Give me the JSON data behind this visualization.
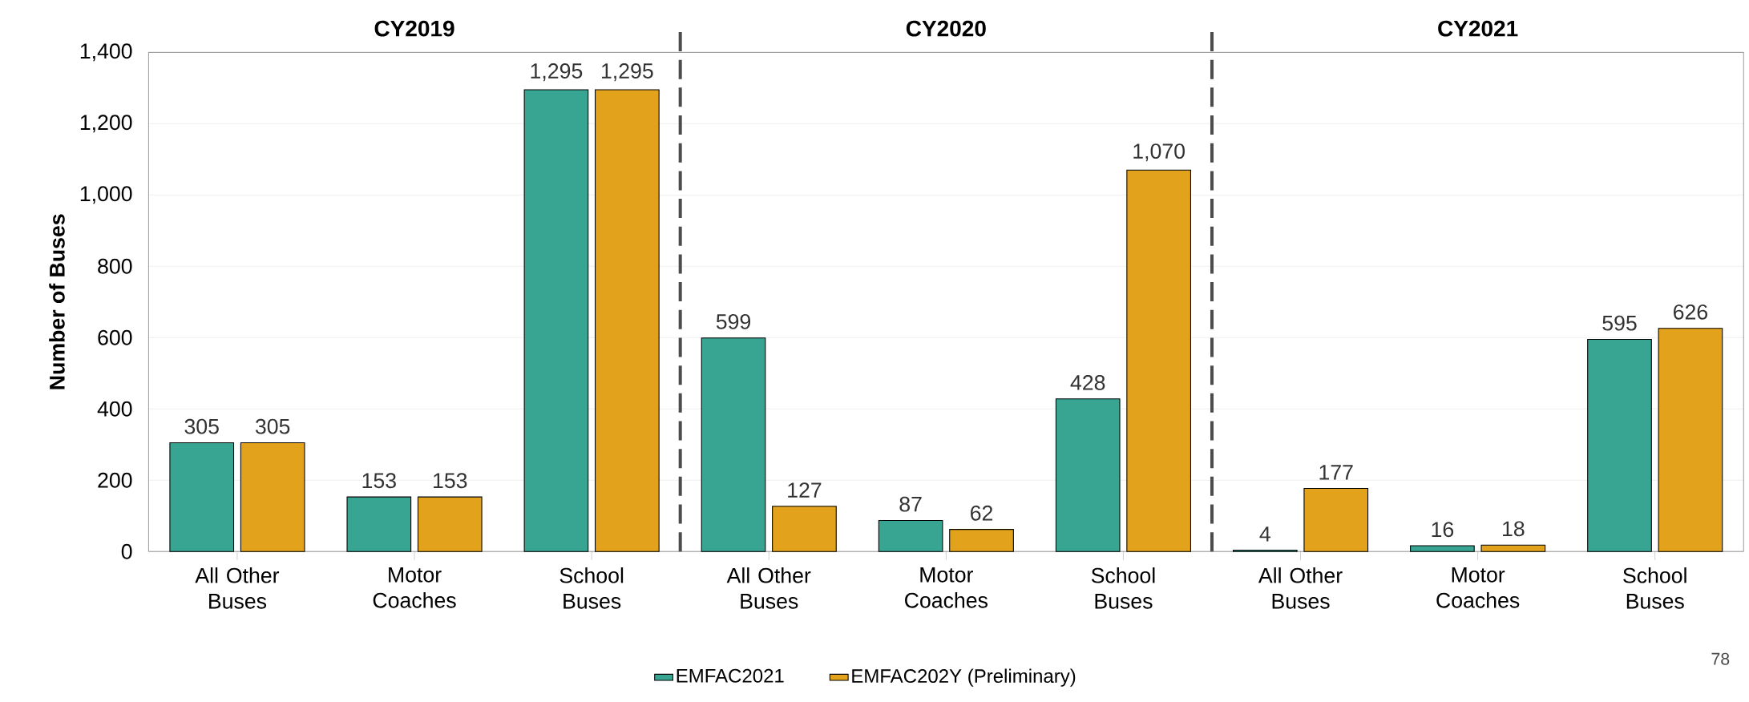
{
  "chart_data": {
    "type": "bar",
    "ylabel": "Number of Buses",
    "categories": [
      "All Other Buses",
      "Motor Coaches",
      "School Buses",
      "All Other Buses",
      "Motor Coaches",
      "School Buses",
      "All Other Buses",
      "Motor Coaches",
      "School Buses"
    ],
    "series": [
      {
        "name": "EMFAC2021",
        "color": "#38a592",
        "values": [
          305,
          153,
          1295,
          599,
          87,
          428,
          4,
          16,
          595
        ],
        "value_labels": [
          "305",
          "153",
          "1,295",
          "599",
          "87",
          "428",
          "4",
          "16",
          "595"
        ]
      },
      {
        "name": "EMFAC202Y (Preliminary)",
        "color": "#e2a21c",
        "values": [
          305,
          153,
          1295,
          127,
          62,
          1070,
          177,
          18,
          626
        ],
        "value_labels": [
          "305",
          "153",
          "1,295",
          "127",
          "62",
          "1,070",
          "177",
          "18",
          "626"
        ]
      }
    ],
    "ylim": [
      0,
      1400
    ],
    "yticks": [
      0,
      200,
      400,
      600,
      800,
      {
        "value": 1000,
        "label": "1,000"
      },
      {
        "value": 1200,
        "label": "1,200"
      },
      {
        "value": 1400,
        "label": "1,400"
      }
    ],
    "grid": "y",
    "legend": "bottom",
    "annotations": [
      "CY2019",
      "CY2020",
      "CY2021",
      "78"
    ]
  }
}
